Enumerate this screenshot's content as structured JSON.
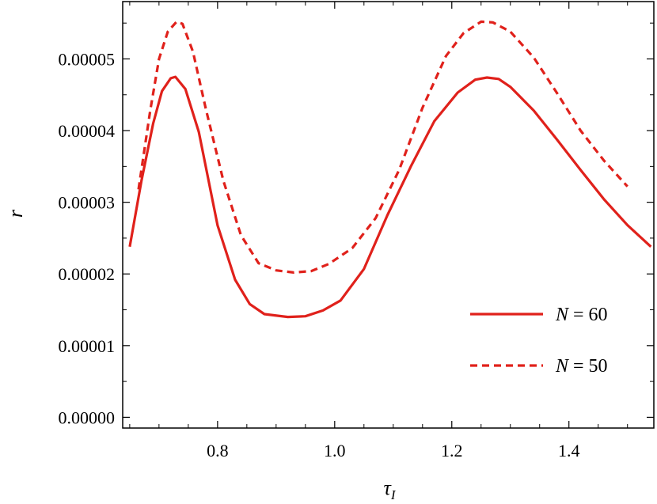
{
  "chart_data": {
    "type": "line",
    "xlabel": "τ_I",
    "ylabel": "r",
    "xlim": [
      0.638,
      1.545
    ],
    "ylim": [
      -1.5e-06,
      5.8e-05
    ],
    "x_ticks": [
      {
        "value": 0.8,
        "label": "0.8"
      },
      {
        "value": 1.0,
        "label": "1.0"
      },
      {
        "value": 1.2,
        "label": "1.2"
      },
      {
        "value": 1.4,
        "label": "1.4"
      }
    ],
    "y_ticks": [
      {
        "value": 0.0,
        "label": "0.00000"
      },
      {
        "value": 1e-05,
        "label": "0.00001"
      },
      {
        "value": 2e-05,
        "label": "0.00002"
      },
      {
        "value": 3e-05,
        "label": "0.00003"
      },
      {
        "value": 4e-05,
        "label": "0.00004"
      },
      {
        "value": 5e-05,
        "label": "0.00005"
      }
    ],
    "grid": false,
    "legend_position": "bottom-right",
    "color": "#e0211b",
    "series": [
      {
        "name": "N = 60",
        "var": "N",
        "value": "60",
        "style": "solid",
        "points": [
          [
            0.65,
            2.38e-05
          ],
          [
            0.67,
            3.3e-05
          ],
          [
            0.69,
            4.1e-05
          ],
          [
            0.705,
            4.55e-05
          ],
          [
            0.72,
            4.73e-05
          ],
          [
            0.728,
            4.75e-05
          ],
          [
            0.745,
            4.58e-05
          ],
          [
            0.768,
            3.98e-05
          ],
          [
            0.8,
            2.68e-05
          ],
          [
            0.83,
            1.92e-05
          ],
          [
            0.855,
            1.58e-05
          ],
          [
            0.88,
            1.44e-05
          ],
          [
            0.92,
            1.4e-05
          ],
          [
            0.95,
            1.41e-05
          ],
          [
            0.98,
            1.49e-05
          ],
          [
            1.01,
            1.63e-05
          ],
          [
            1.05,
            2.07e-05
          ],
          [
            1.09,
            2.82e-05
          ],
          [
            1.13,
            3.5e-05
          ],
          [
            1.17,
            4.13e-05
          ],
          [
            1.21,
            4.53e-05
          ],
          [
            1.24,
            4.71e-05
          ],
          [
            1.26,
            4.74e-05
          ],
          [
            1.28,
            4.72e-05
          ],
          [
            1.3,
            4.61e-05
          ],
          [
            1.34,
            4.28e-05
          ],
          [
            1.38,
            3.87e-05
          ],
          [
            1.42,
            3.45e-05
          ],
          [
            1.46,
            3.04e-05
          ],
          [
            1.5,
            2.68e-05
          ],
          [
            1.54,
            2.38e-05
          ]
        ]
      },
      {
        "name": "N = 50",
        "var": "N",
        "value": "50",
        "style": "dashed",
        "points": [
          [
            0.665,
            3.18e-05
          ],
          [
            0.685,
            4.28e-05
          ],
          [
            0.7,
            5e-05
          ],
          [
            0.715,
            5.38e-05
          ],
          [
            0.73,
            5.52e-05
          ],
          [
            0.74,
            5.49e-05
          ],
          [
            0.758,
            5.1e-05
          ],
          [
            0.78,
            4.3e-05
          ],
          [
            0.81,
            3.3e-05
          ],
          [
            0.84,
            2.54e-05
          ],
          [
            0.87,
            2.15e-05
          ],
          [
            0.9,
            2.05e-05
          ],
          [
            0.93,
            2.02e-05
          ],
          [
            0.96,
            2.04e-05
          ],
          [
            0.99,
            2.14e-05
          ],
          [
            1.03,
            2.36e-05
          ],
          [
            1.07,
            2.78e-05
          ],
          [
            1.11,
            3.45e-05
          ],
          [
            1.15,
            4.32e-05
          ],
          [
            1.19,
            5.04e-05
          ],
          [
            1.22,
            5.36e-05
          ],
          [
            1.25,
            5.52e-05
          ],
          [
            1.27,
            5.51e-05
          ],
          [
            1.3,
            5.38e-05
          ],
          [
            1.34,
            5.02e-05
          ],
          [
            1.38,
            4.52e-05
          ],
          [
            1.42,
            4e-05
          ],
          [
            1.46,
            3.58e-05
          ],
          [
            1.5,
            3.22e-05
          ]
        ]
      }
    ]
  }
}
